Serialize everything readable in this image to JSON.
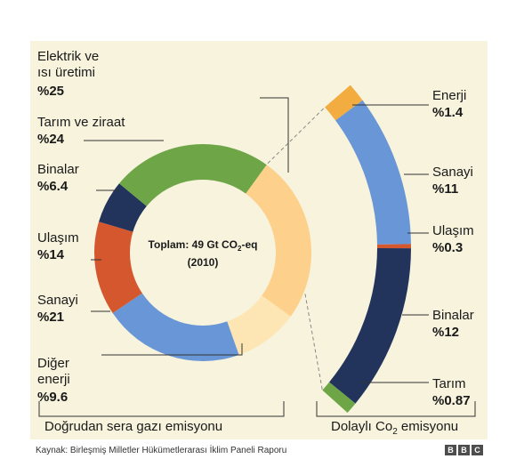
{
  "chart_data": [
    {
      "type": "donut",
      "center_title": "Toplam: 49 Gt CO",
      "center_sub": "2",
      "center_suffix": "-eq",
      "center_year": "(2010)",
      "footer": "Doğrudan sera gazı emisyonu",
      "slices": [
        {
          "name_lines": [
            "Elektrik ve",
            "ısı üretimi"
          ],
          "label": "%25",
          "value": 25,
          "color": "#fdd18c"
        },
        {
          "name_lines": [
            "Diğer",
            "enerji"
          ],
          "label": "%9.6",
          "value": 9.6,
          "color": "#fde5b4"
        },
        {
          "name_lines": [
            "Sanayi"
          ],
          "label": "%21",
          "value": 21,
          "color": "#6996d6"
        },
        {
          "name_lines": [
            "Ulaşım"
          ],
          "label": "%14",
          "value": 14,
          "color": "#d4572e"
        },
        {
          "name_lines": [
            "Binalar"
          ],
          "label": "%6.4",
          "value": 6.4,
          "color": "#22345c"
        },
        {
          "name_lines": [
            "Tarım ve ziraat"
          ],
          "label": "%24",
          "value": 24,
          "color": "#6ea647"
        }
      ]
    },
    {
      "type": "bar",
      "footer_pre": "Dolaylı Co",
      "footer_sub": "2",
      "footer_post": " emisyonu",
      "segments": [
        {
          "name": "Enerji",
          "label": "%1.4",
          "value": 1.4,
          "color": "#f2ac3f"
        },
        {
          "name": "Sanayi",
          "label": "%11",
          "value": 11,
          "color": "#6996d6"
        },
        {
          "name": "Ulaşım",
          "label": "%0.3",
          "value": 0.3,
          "color": "#d4572e"
        },
        {
          "name": "Binalar",
          "label": "%12",
          "value": 12,
          "color": "#22345c"
        },
        {
          "name": "Tarım",
          "label": "%0.87",
          "value": 0.87,
          "color": "#6ea647"
        }
      ]
    }
  ],
  "source": "Kaynak: Birleşmiş Milletler Hükümetlerarası İklim Paneli Raporu",
  "logo": [
    "B",
    "B",
    "C"
  ]
}
